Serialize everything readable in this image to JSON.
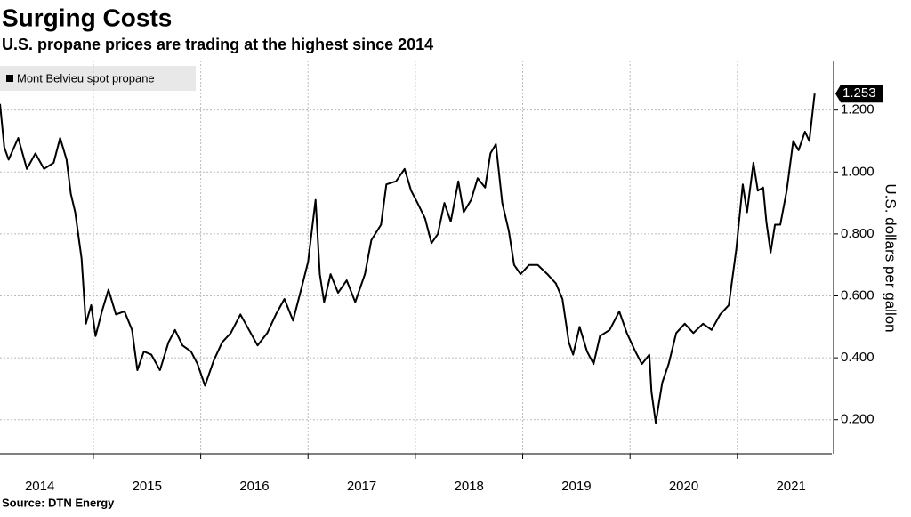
{
  "chart_data": {
    "type": "line",
    "title": "Surging Costs",
    "subtitle": "U.S. propane prices are trading at the highest since 2014",
    "source": "Source: DTN Energy",
    "y_label": "U.S. dollars per gallon",
    "x": [
      2014.13,
      2014.17,
      2014.21,
      2014.3,
      2014.38,
      2014.46,
      2014.54,
      2014.63,
      2014.69,
      2014.75,
      2014.79,
      2014.83,
      2014.89,
      2014.93,
      2014.98,
      2015.02,
      2015.08,
      2015.14,
      2015.21,
      2015.29,
      2015.36,
      2015.41,
      2015.47,
      2015.54,
      2015.62,
      2015.7,
      2015.76,
      2015.83,
      2015.91,
      2015.97,
      2016.04,
      2016.12,
      2016.2,
      2016.28,
      2016.37,
      2016.45,
      2016.53,
      2016.62,
      2016.7,
      2016.78,
      2016.86,
      2016.95,
      2017.0,
      2017.07,
      2017.11,
      2017.15,
      2017.21,
      2017.28,
      2017.36,
      2017.44,
      2017.53,
      2017.59,
      2017.68,
      2017.73,
      2017.82,
      2017.9,
      2017.96,
      2018.02,
      2018.09,
      2018.15,
      2018.21,
      2018.27,
      2018.33,
      2018.4,
      2018.45,
      2018.52,
      2018.58,
      2018.65,
      2018.7,
      2018.75,
      2018.81,
      2018.87,
      2018.92,
      2018.98,
      2019.06,
      2019.14,
      2019.23,
      2019.31,
      2019.37,
      2019.43,
      2019.47,
      2019.53,
      2019.6,
      2019.66,
      2019.72,
      2019.81,
      2019.9,
      2019.97,
      2020.05,
      2020.11,
      2020.18,
      2020.2,
      2020.24,
      2020.3,
      2020.36,
      2020.43,
      2020.51,
      2020.59,
      2020.68,
      2020.76,
      2020.84,
      2020.92,
      2020.99,
      2021.05,
      2021.09,
      2021.15,
      2021.19,
      2021.24,
      2021.27,
      2021.31,
      2021.35,
      2021.4,
      2021.46,
      2021.52,
      2021.57,
      2021.63,
      2021.67,
      2021.72
    ],
    "series": [
      {
        "name": "Mont Belvieu spot propane",
        "color": "#000000",
        "values": [
          1.22,
          1.08,
          1.04,
          1.11,
          1.01,
          1.06,
          1.01,
          1.03,
          1.11,
          1.04,
          0.93,
          0.87,
          0.72,
          0.51,
          0.57,
          0.47,
          0.55,
          0.62,
          0.54,
          0.55,
          0.49,
          0.36,
          0.42,
          0.41,
          0.36,
          0.45,
          0.49,
          0.44,
          0.42,
          0.38,
          0.31,
          0.39,
          0.45,
          0.48,
          0.54,
          0.49,
          0.44,
          0.48,
          0.54,
          0.59,
          0.52,
          0.64,
          0.71,
          0.91,
          0.67,
          0.58,
          0.67,
          0.61,
          0.65,
          0.58,
          0.67,
          0.78,
          0.83,
          0.96,
          0.97,
          1.01,
          0.94,
          0.9,
          0.85,
          0.77,
          0.8,
          0.9,
          0.84,
          0.97,
          0.87,
          0.91,
          0.98,
          0.95,
          1.06,
          1.09,
          0.9,
          0.81,
          0.7,
          0.67,
          0.7,
          0.7,
          0.67,
          0.64,
          0.59,
          0.45,
          0.41,
          0.5,
          0.42,
          0.38,
          0.47,
          0.49,
          0.55,
          0.48,
          0.42,
          0.38,
          0.41,
          0.29,
          0.19,
          0.32,
          0.38,
          0.48,
          0.51,
          0.48,
          0.51,
          0.49,
          0.54,
          0.57,
          0.75,
          0.96,
          0.87,
          1.03,
          0.94,
          0.95,
          0.84,
          0.74,
          0.83,
          0.83,
          0.94,
          1.1,
          1.07,
          1.13,
          1.1,
          1.253
        ]
      }
    ],
    "xlim": [
      2014.13,
      2021.88
    ],
    "ylim": [
      0.09,
      1.36
    ],
    "xticks": [
      {
        "value": 2014.5,
        "label": "2014"
      },
      {
        "value": 2015.5,
        "label": "2015"
      },
      {
        "value": 2016.5,
        "label": "2016"
      },
      {
        "value": 2017.5,
        "label": "2017"
      },
      {
        "value": 2018.5,
        "label": "2018"
      },
      {
        "value": 2019.5,
        "label": "2019"
      },
      {
        "value": 2020.5,
        "label": "2020"
      },
      {
        "value": 2021.5,
        "label": "2021"
      }
    ],
    "yticks": [
      {
        "value": 0.2,
        "label": "0.200"
      },
      {
        "value": 0.4,
        "label": "0.400"
      },
      {
        "value": 0.6,
        "label": "0.600"
      },
      {
        "value": 0.8,
        "label": "0.800"
      },
      {
        "value": 1.0,
        "label": "1.000"
      },
      {
        "value": 1.2,
        "label": "1.200"
      }
    ],
    "grid": true
  }
}
